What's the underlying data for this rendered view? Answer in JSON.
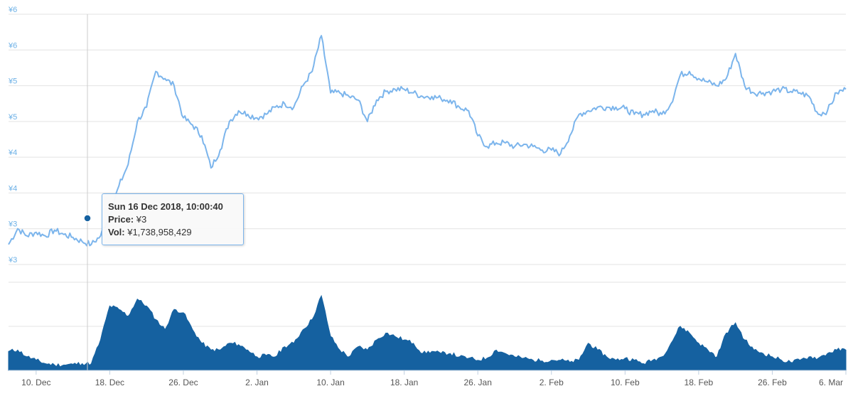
{
  "colors": {
    "price_line": "#7cb5ec",
    "volume_fill": "#1561a0",
    "crosshair": "#cccccc",
    "grid": "#e3e3e3",
    "marker": "#1561a0",
    "tooltip_border": "#7cb5ec"
  },
  "tooltip": {
    "date": "Sun 16 Dec 2018, 10:00:40",
    "price_label": "Price:",
    "price_value": "¥3",
    "vol_label": "Vol:",
    "vol_value": "¥1,738,958,429"
  },
  "chart_data": [
    {
      "type": "line",
      "name": "price",
      "y_tick_labels": [
        "¥6",
        "¥6",
        "¥5",
        "¥5",
        "¥4",
        "¥4",
        "¥3",
        "¥3"
      ],
      "ylim": [
        3.0,
        6.5
      ],
      "x_tick_labels": [
        "10. Dec",
        "18. Dec",
        "26. Dec",
        "2. Jan",
        "10. Jan",
        "18. Jan",
        "26. Jan",
        "2. Feb",
        "10. Feb",
        "18. Feb",
        "26. Feb",
        "6. Mar"
      ],
      "xlim": [
        "2018-12-07",
        "2019-03-08"
      ],
      "grid": true,
      "x": [
        "2018-12-07",
        "2018-12-08",
        "2018-12-09",
        "2018-12-10",
        "2018-12-11",
        "2018-12-12",
        "2018-12-13",
        "2018-12-14",
        "2018-12-15",
        "2018-12-16",
        "2018-12-17",
        "2018-12-18",
        "2018-12-19",
        "2018-12-20",
        "2018-12-21",
        "2018-12-22",
        "2018-12-23",
        "2018-12-24",
        "2018-12-25",
        "2018-12-26",
        "2018-12-27",
        "2018-12-28",
        "2018-12-29",
        "2018-12-30",
        "2018-12-31",
        "2019-01-01",
        "2019-01-02",
        "2019-01-03",
        "2019-01-04",
        "2019-01-05",
        "2019-01-06",
        "2019-01-07",
        "2019-01-08",
        "2019-01-09",
        "2019-01-10",
        "2019-01-11",
        "2019-01-12",
        "2019-01-13",
        "2019-01-14",
        "2019-01-15",
        "2019-01-16",
        "2019-01-17",
        "2019-01-18",
        "2019-01-19",
        "2019-01-20",
        "2019-01-21",
        "2019-01-22",
        "2019-01-23",
        "2019-01-24",
        "2019-01-25",
        "2019-01-26",
        "2019-01-27",
        "2019-01-28",
        "2019-01-29",
        "2019-01-30",
        "2019-01-31",
        "2019-02-01",
        "2019-02-02",
        "2019-02-03",
        "2019-02-04",
        "2019-02-05",
        "2019-02-06",
        "2019-02-07",
        "2019-02-08",
        "2019-02-09",
        "2019-02-10",
        "2019-02-11",
        "2019-02-12",
        "2019-02-13",
        "2019-02-14",
        "2019-02-15",
        "2019-02-16",
        "2019-02-17",
        "2019-02-18",
        "2019-02-19",
        "2019-02-20",
        "2019-02-21",
        "2019-02-22",
        "2019-02-23",
        "2019-02-24",
        "2019-02-25",
        "2019-02-26",
        "2019-02-27",
        "2019-02-28",
        "2019-03-01",
        "2019-03-02",
        "2019-03-03",
        "2019-03-04",
        "2019-03-05",
        "2019-03-06",
        "2019-03-07",
        "2019-03-08"
      ],
      "values": [
        3.28,
        3.5,
        3.4,
        3.45,
        3.4,
        3.48,
        3.42,
        3.38,
        3.32,
        3.28,
        3.4,
        3.7,
        4.1,
        4.4,
        5.0,
        5.2,
        5.7,
        5.6,
        5.5,
        5.05,
        4.95,
        4.8,
        4.35,
        4.6,
        5.0,
        5.15,
        5.1,
        5.05,
        5.1,
        5.2,
        5.25,
        5.2,
        5.5,
        5.7,
        6.2,
        5.4,
        5.4,
        5.35,
        5.3,
        5.0,
        5.3,
        5.42,
        5.45,
        5.45,
        5.4,
        5.35,
        5.35,
        5.32,
        5.3,
        5.2,
        5.15,
        4.8,
        4.65,
        4.7,
        4.7,
        4.65,
        4.68,
        4.65,
        4.6,
        4.6,
        4.55,
        4.8,
        5.1,
        5.15,
        5.2,
        5.2,
        5.2,
        5.18,
        5.1,
        5.1,
        5.15,
        5.1,
        5.25,
        5.65,
        5.7,
        5.6,
        5.55,
        5.5,
        5.6,
        5.95,
        5.5,
        5.4,
        5.4,
        5.42,
        5.45,
        5.42,
        5.4,
        5.35,
        5.1,
        5.15,
        5.4,
        5.45
      ]
    },
    {
      "type": "area",
      "name": "volume",
      "x": [
        "2018-12-07",
        "2018-12-08",
        "2018-12-09",
        "2018-12-10",
        "2018-12-11",
        "2018-12-12",
        "2018-12-13",
        "2018-12-14",
        "2018-12-15",
        "2018-12-16",
        "2018-12-17",
        "2018-12-18",
        "2018-12-19",
        "2018-12-20",
        "2018-12-21",
        "2018-12-22",
        "2018-12-23",
        "2018-12-24",
        "2018-12-25",
        "2018-12-26",
        "2018-12-27",
        "2018-12-28",
        "2018-12-29",
        "2018-12-30",
        "2018-12-31",
        "2019-01-01",
        "2019-01-02",
        "2019-01-03",
        "2019-01-04",
        "2019-01-05",
        "2019-01-06",
        "2019-01-07",
        "2019-01-08",
        "2019-01-09",
        "2019-01-10",
        "2019-01-11",
        "2019-01-12",
        "2019-01-13",
        "2019-01-14",
        "2019-01-15",
        "2019-01-16",
        "2019-01-17",
        "2019-01-18",
        "2019-01-19",
        "2019-01-20",
        "2019-01-21",
        "2019-01-22",
        "2019-01-23",
        "2019-01-24",
        "2019-01-25",
        "2019-01-26",
        "2019-01-27",
        "2019-01-28",
        "2019-01-29",
        "2019-01-30",
        "2019-01-31",
        "2019-02-01",
        "2019-02-02",
        "2019-02-03",
        "2019-02-04",
        "2019-02-05",
        "2019-02-06",
        "2019-02-07",
        "2019-02-08",
        "2019-02-09",
        "2019-02-10",
        "2019-02-11",
        "2019-02-12",
        "2019-02-13",
        "2019-02-14",
        "2019-02-15",
        "2019-02-16",
        "2019-02-17",
        "2019-02-18",
        "2019-02-19",
        "2019-02-20",
        "2019-02-21",
        "2019-02-22",
        "2019-02-23",
        "2019-02-24",
        "2019-02-25",
        "2019-02-26",
        "2019-02-27",
        "2019-02-28",
        "2019-03-01",
        "2019-03-02",
        "2019-03-03",
        "2019-03-04",
        "2019-03-05",
        "2019-03-06",
        "2019-03-07",
        "2019-03-08"
      ],
      "values": [
        0.28,
        0.3,
        0.2,
        0.15,
        0.1,
        0.08,
        0.08,
        0.09,
        0.1,
        0.1,
        0.45,
        0.95,
        0.9,
        0.8,
        1.05,
        0.95,
        0.75,
        0.6,
        0.9,
        0.85,
        0.6,
        0.4,
        0.3,
        0.3,
        0.4,
        0.38,
        0.3,
        0.2,
        0.22,
        0.2,
        0.35,
        0.4,
        0.6,
        0.75,
        1.1,
        0.5,
        0.3,
        0.2,
        0.35,
        0.3,
        0.45,
        0.55,
        0.5,
        0.45,
        0.4,
        0.25,
        0.28,
        0.25,
        0.25,
        0.2,
        0.18,
        0.15,
        0.18,
        0.3,
        0.25,
        0.2,
        0.18,
        0.15,
        0.14,
        0.15,
        0.15,
        0.12,
        0.15,
        0.4,
        0.3,
        0.2,
        0.15,
        0.18,
        0.15,
        0.1,
        0.15,
        0.2,
        0.4,
        0.65,
        0.55,
        0.4,
        0.3,
        0.2,
        0.55,
        0.7,
        0.45,
        0.3,
        0.25,
        0.2,
        0.15,
        0.12,
        0.15,
        0.2,
        0.18,
        0.25,
        0.3,
        0.3
      ]
    }
  ]
}
